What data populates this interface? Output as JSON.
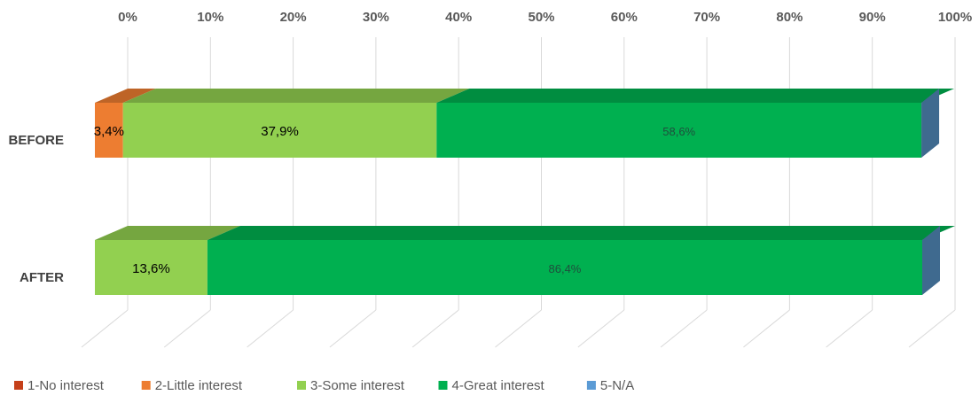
{
  "chart_data": {
    "type": "bar",
    "orientation": "horizontal",
    "stacked": true,
    "style": "3d",
    "categories": [
      "BEFORE",
      "AFTER"
    ],
    "xaxis": {
      "ticks": [
        "0%",
        "10%",
        "20%",
        "30%",
        "40%",
        "50%",
        "60%",
        "70%",
        "80%",
        "90%",
        "100%"
      ],
      "range": [
        0,
        100
      ],
      "position": "top"
    },
    "grid": true,
    "legend_position": "bottom-left",
    "series": [
      {
        "name": "1-No interest",
        "color": "#c5401a",
        "values": [
          0,
          0
        ],
        "labels": [
          "",
          ""
        ]
      },
      {
        "name": "2-Little interest",
        "color": "#ed7d31",
        "values": [
          3.4,
          0
        ],
        "labels": [
          "3,4%",
          ""
        ]
      },
      {
        "name": "3-Some interest",
        "color": "#92d050",
        "values": [
          37.9,
          13.6
        ],
        "labels": [
          "37,9%",
          "13,6%"
        ]
      },
      {
        "name": "4-Great interest",
        "color": "#00b050",
        "values": [
          58.6,
          86.4
        ],
        "labels": [
          "58,6%",
          "86,4%"
        ]
      },
      {
        "name": "5-N/A",
        "color": "#5b9bd5",
        "values": [
          0,
          0
        ],
        "labels": [
          "",
          ""
        ]
      }
    ]
  }
}
